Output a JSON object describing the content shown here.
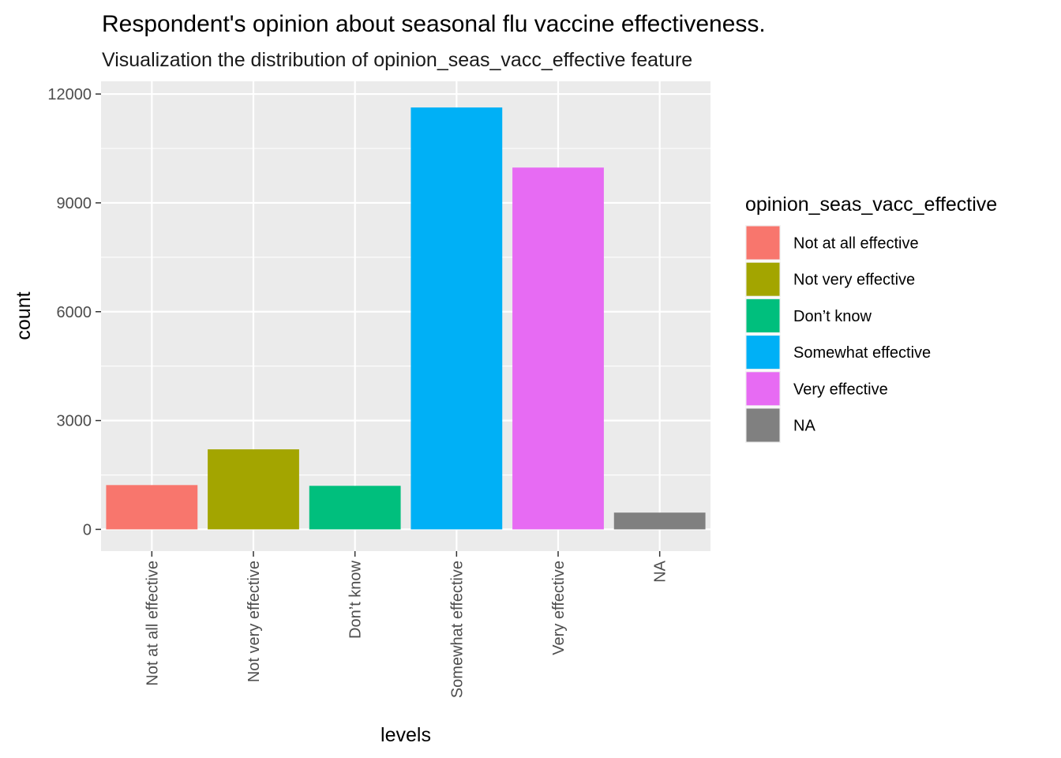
{
  "chart_data": {
    "type": "bar",
    "title": "Respondent's opinion about seasonal flu vaccine effectiveness.",
    "subtitle": "Visualization the distribution of opinion_seas_vacc_effective feature",
    "xlabel": "levels",
    "ylabel": "count",
    "categories": [
      "Not at all effective",
      "Not very effective",
      "Don’t know",
      "Somewhat effective",
      "Very effective",
      "NA"
    ],
    "values": [
      1221,
      2206,
      1200,
      11629,
      9973,
      462
    ],
    "colors": [
      "#F8766D",
      "#A3A500",
      "#00BF7D",
      "#00B0F6",
      "#E76BF3",
      "#808080"
    ],
    "ylim": [
      -600,
      12350
    ],
    "yticks": [
      0,
      3000,
      6000,
      9000,
      12000
    ],
    "ytick_labels": [
      "0",
      "3000",
      "6000",
      "9000",
      "12000"
    ],
    "grid": true,
    "panel_background": "#EBEBEB",
    "legend": {
      "title": "opinion_seas_vacc_effective",
      "position": "right",
      "items": [
        "Not at all effective",
        "Not very effective",
        "Don’t know",
        "Somewhat effective",
        "Very effective",
        "NA"
      ]
    }
  }
}
